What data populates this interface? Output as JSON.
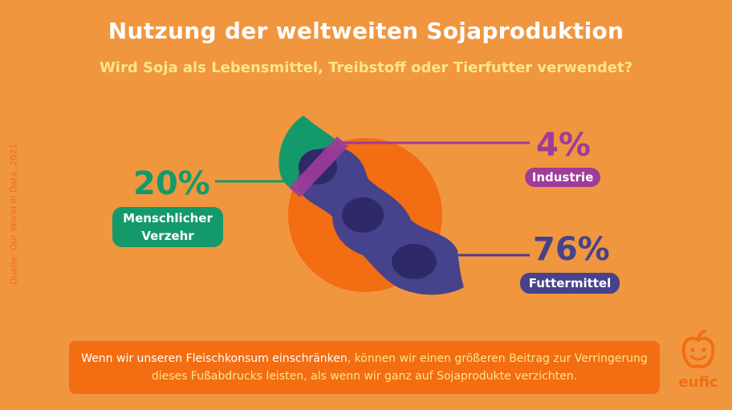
{
  "header": {
    "title": "Nutzung der weltweiten Sojaproduktion",
    "subtitle": "Wird Soja als Lebensmittel, Treibstoff oder Tierfutter verwendet?"
  },
  "source": "Quelle: Our World in Data, 2021.",
  "chart_data": {
    "type": "pie",
    "title": "Nutzung der weltweiten Sojaproduktion",
    "subtitle": "Wird Soja als Lebensmittel, Treibstoff oder Tierfutter verwendet?",
    "unit": "%",
    "slices": [
      {
        "label": "Menschlicher Verzehr",
        "value": 20,
        "value_label": "20%",
        "color": "#149a6a"
      },
      {
        "label": "Industrie",
        "value": 4,
        "value_label": "4%",
        "color": "#a03b9a"
      },
      {
        "label": "Futtermittel",
        "value": 76,
        "value_label": "76%",
        "color": "#47428c"
      }
    ]
  },
  "footer": {
    "text_a": "Wenn wir unseren Fleischkonsum einschränken",
    "text_b": ", können wir einen größeren Beitrag zur Verringerung dieses Fußabdrucks leisten, als wenn wir ganz auf Sojaprodukte verzichten."
  },
  "brand": {
    "name": "eufic"
  },
  "colors": {
    "background": "#f0963f",
    "circle": "#f36d12",
    "human": "#149a6a",
    "industry": "#a03b9a",
    "feed": "#47428c",
    "highlight": "#fde68a"
  }
}
